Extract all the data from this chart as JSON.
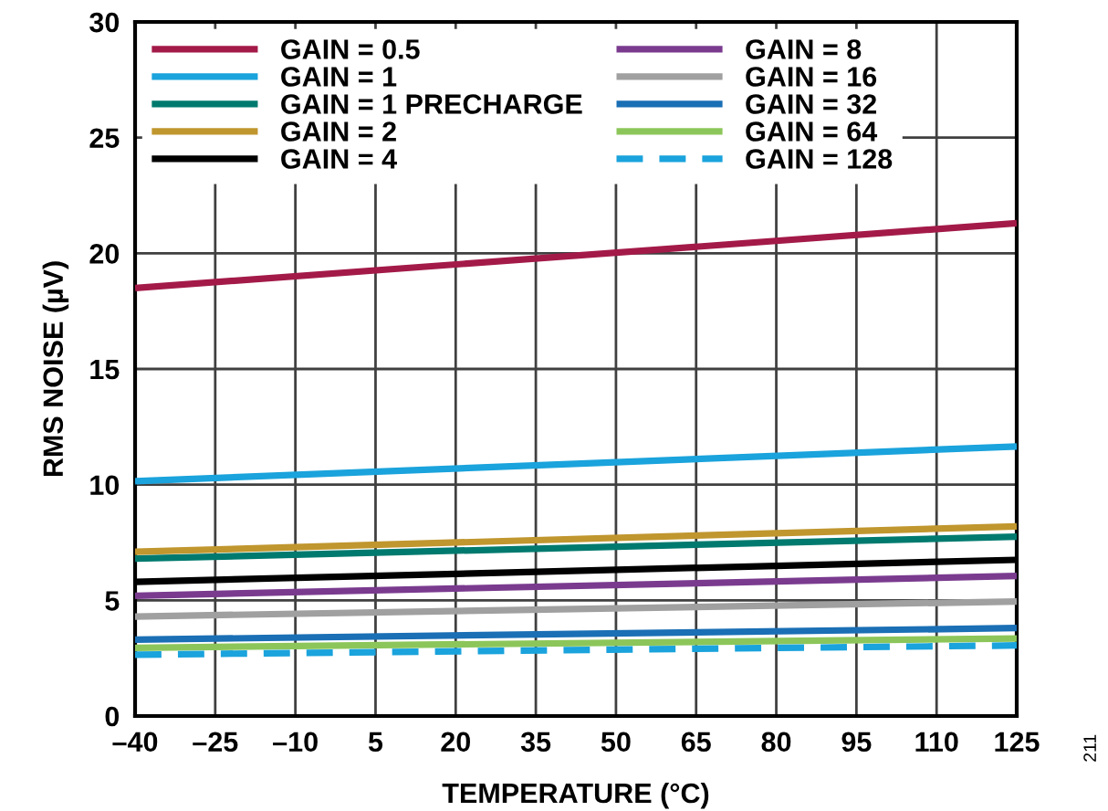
{
  "chart_data": {
    "type": "line",
    "xlabel": "TEMPERATURE (°C)",
    "ylabel": "RMS NOISE (µV)",
    "x": [
      -40,
      125
    ],
    "xlim": [
      -40,
      125
    ],
    "xticks": [
      {
        "value": -40,
        "label": "–40"
      },
      {
        "value": -25,
        "label": "–25"
      },
      {
        "value": -10,
        "label": "–10"
      },
      5,
      20,
      35,
      50,
      65,
      80,
      95,
      110,
      125
    ],
    "ylim": [
      0,
      30
    ],
    "yticks": [
      0,
      5,
      10,
      15,
      20,
      25,
      30
    ],
    "grid": true,
    "legend": "top left",
    "annotations": [
      "211"
    ],
    "series": [
      {
        "name": "GAIN = 0.5",
        "color": "#a31a48",
        "values": [
          18.5,
          21.3
        ]
      },
      {
        "name": "GAIN = 1",
        "color": "#1aa3dc",
        "values": [
          10.15,
          11.65
        ]
      },
      {
        "name": "GAIN = 1 PRECHARGE",
        "color": "#007a6e",
        "values": [
          6.8,
          7.75
        ]
      },
      {
        "name": "GAIN = 2",
        "color": "#c0962e",
        "values": [
          7.1,
          8.2
        ]
      },
      {
        "name": "GAIN = 4",
        "color": "#000000",
        "values": [
          5.8,
          6.75
        ]
      },
      {
        "name": "GAIN = 8",
        "color": "#7a3b8f",
        "values": [
          5.2,
          6.05
        ]
      },
      {
        "name": "GAIN = 16",
        "color": "#a0a0a0",
        "values": [
          4.3,
          4.95
        ]
      },
      {
        "name": "GAIN = 32",
        "color": "#1a6fb5",
        "values": [
          3.3,
          3.8
        ]
      },
      {
        "name": "GAIN = 64",
        "color": "#8cc65a",
        "values": [
          2.95,
          3.35
        ]
      },
      {
        "name": "GAIN = 128",
        "color": "#1aa3dc",
        "values": [
          2.65,
          3.05
        ],
        "line_style": "dashed"
      }
    ]
  }
}
